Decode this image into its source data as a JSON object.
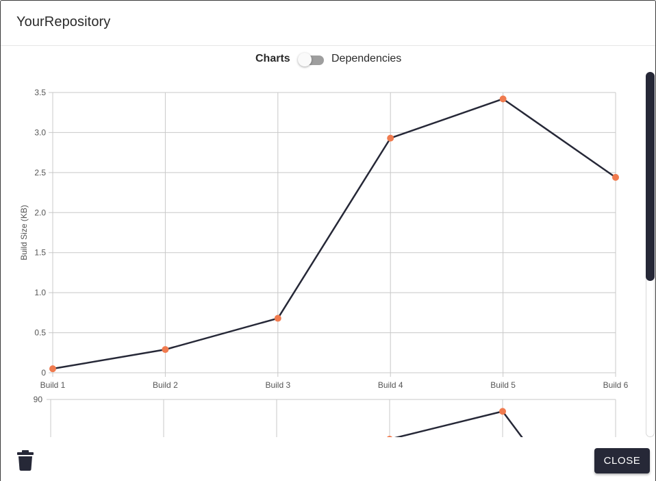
{
  "header": {
    "title": "YourRepository"
  },
  "view_toggle": {
    "left_label": "Charts",
    "right_label": "Dependencies",
    "checked": false
  },
  "footer": {
    "close_label": "CLOSE",
    "delete_icon": "trash-icon"
  },
  "colors": {
    "line": "#262837",
    "point": "#f07b4f",
    "grid": "#c8c8c8",
    "button": "#262837",
    "scroll_thumb": "#262837"
  },
  "chart_data": [
    {
      "type": "line",
      "title": "",
      "xlabel": "",
      "ylabel": "Build Size (KB)",
      "categories": [
        "Build 1",
        "Build 2",
        "Build 3",
        "Build 4",
        "Build 5",
        "Build 6"
      ],
      "values": [
        0.05,
        0.29,
        0.68,
        2.93,
        3.42,
        2.44
      ],
      "ylim": [
        0,
        3.5
      ],
      "yticks": [
        "0",
        "0.5",
        "1.0",
        "1.5",
        "2.0",
        "2.5",
        "3.0",
        "3.5"
      ],
      "grid": true
    },
    {
      "type": "line",
      "title": "",
      "categories": [
        "Build 1",
        "Build 2",
        "Build 3",
        "Build 4",
        "Build 5",
        "Build 6"
      ],
      "values_visible": [
        null,
        null,
        null,
        80,
        87,
        null
      ],
      "ylim_top": 90,
      "yticks_visible": [
        "90"
      ],
      "grid": true,
      "note_partial": "clipped"
    }
  ]
}
